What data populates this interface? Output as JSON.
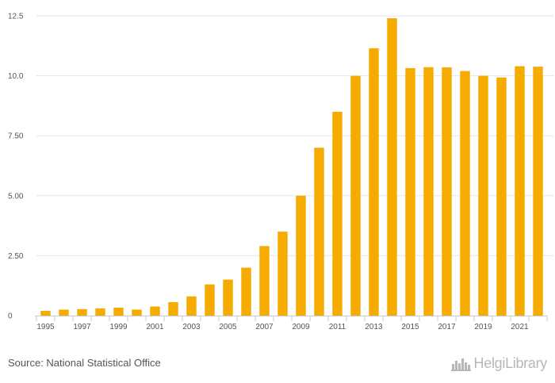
{
  "chart_data": {
    "type": "bar",
    "categories": [
      "1995",
      "1996",
      "1997",
      "1998",
      "1999",
      "2000",
      "2001",
      "2002",
      "2003",
      "2004",
      "2005",
      "2006",
      "2007",
      "2008",
      "2009",
      "2010",
      "2011",
      "2012",
      "2013",
      "2014",
      "2015",
      "2016",
      "2017",
      "2018",
      "2019",
      "2020",
      "2021",
      "2022"
    ],
    "values": [
      0.2,
      0.25,
      0.27,
      0.3,
      0.33,
      0.25,
      0.38,
      0.56,
      0.8,
      1.3,
      1.5,
      2.0,
      2.9,
      3.5,
      5.0,
      7.0,
      8.5,
      10.0,
      11.15,
      12.4,
      10.32,
      10.36,
      10.35,
      10.2,
      10.0,
      9.93,
      10.4,
      10.38
    ],
    "x_tick_labels": [
      "1995",
      "1997",
      "1999",
      "2001",
      "2003",
      "2005",
      "2007",
      "2009",
      "2011",
      "2013",
      "2015",
      "2017",
      "2019",
      "2021"
    ],
    "y_tick_labels": [
      "0",
      "2.50",
      "5.00",
      "7.50",
      "10.0",
      "12.5"
    ],
    "y_ticks": [
      0,
      2.5,
      5,
      7.5,
      10,
      12.5
    ],
    "ylim": [
      0,
      12.5
    ],
    "title": "",
    "xlabel": "",
    "ylabel": "",
    "grid": true,
    "bar_color": "#f5ab00",
    "grid_color": "#e6e6e6"
  },
  "footer": {
    "source": "Source: National Statistical Office",
    "brand": "HelgiLibrary",
    "brand_icon": "city-skyline-icon"
  }
}
